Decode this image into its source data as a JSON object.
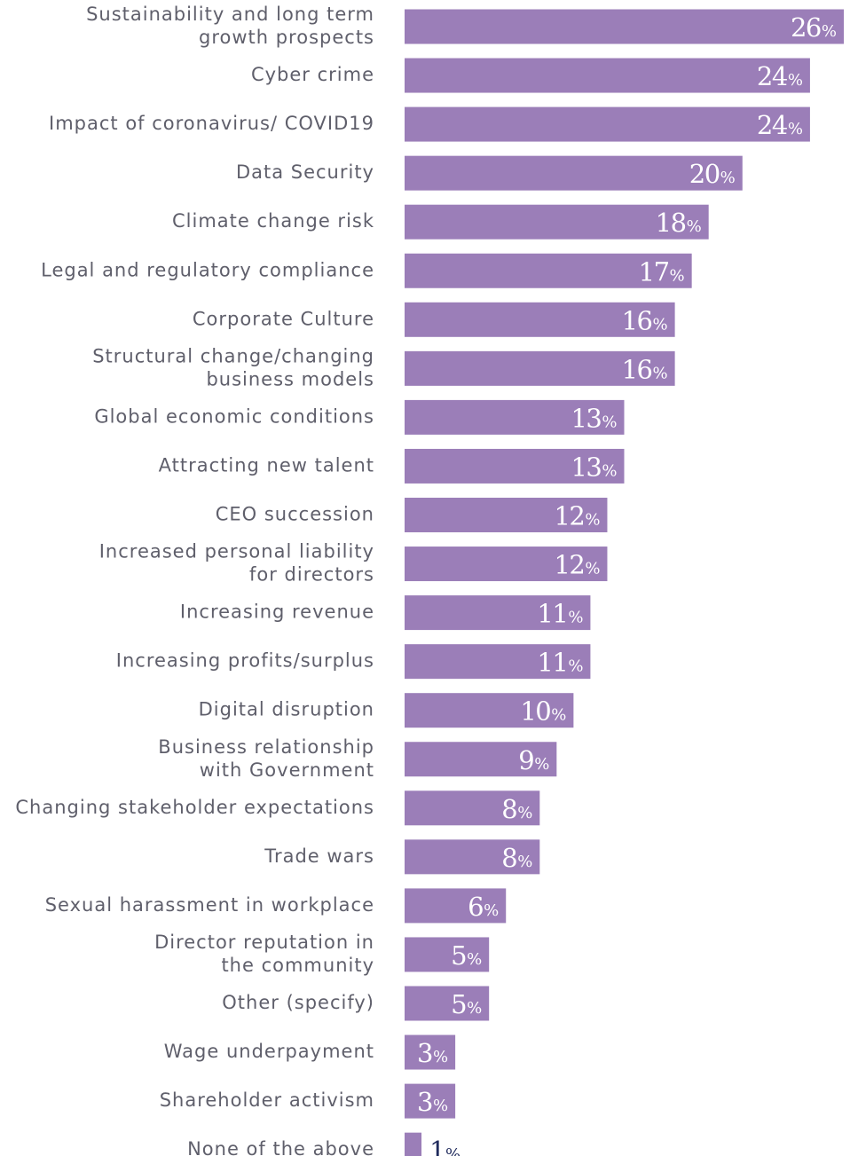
{
  "chart_data": {
    "type": "bar",
    "orientation": "horizontal",
    "categories": [
      [
        "Sustainability and long term",
        "growth prospects"
      ],
      [
        "Cyber crime"
      ],
      [
        "Impact of coronavirus/ COVID19"
      ],
      [
        "Data Security"
      ],
      [
        "Climate change risk"
      ],
      [
        "Legal and regulatory compliance"
      ],
      [
        "Corporate Culture"
      ],
      [
        "Structural change/changing",
        "business models"
      ],
      [
        "Global economic conditions"
      ],
      [
        "Attracting new talent"
      ],
      [
        "CEO succession"
      ],
      [
        "Increased personal liability",
        "for directors"
      ],
      [
        "Increasing revenue"
      ],
      [
        "Increasing profits/surplus"
      ],
      [
        "Digital disruption"
      ],
      [
        "Business relationship",
        "with Government"
      ],
      [
        "Changing stakeholder expectations"
      ],
      [
        "Trade wars"
      ],
      [
        "Sexual harassment in workplace"
      ],
      [
        "Director reputation in",
        "the community"
      ],
      [
        "Other (specify)"
      ],
      [
        "Wage underpayment"
      ],
      [
        "Shareholder activism"
      ],
      [
        "None of the above"
      ]
    ],
    "values": [
      26,
      24,
      24,
      20,
      18,
      17,
      16,
      16,
      13,
      13,
      12,
      12,
      11,
      11,
      10,
      9,
      8,
      8,
      6,
      5,
      5,
      3,
      3,
      1
    ],
    "value_suffix": "%",
    "xlim": [
      0,
      26
    ],
    "grid": false,
    "colors": {
      "bar": "#9b7eb8",
      "label_inside": "#ffffff",
      "label_outside": "#1f2a5c",
      "category_text": "#5f5f6b"
    }
  }
}
